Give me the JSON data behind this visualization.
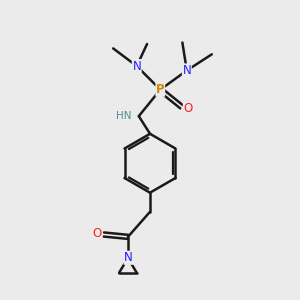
{
  "bg_color": "#ebebeb",
  "bond_color": "#1a1a1a",
  "N_color": "#2020ff",
  "NH_color": "#5a8a8a",
  "P_color": "#cc8800",
  "O_color": "#ff2020",
  "line_width": 1.8,
  "figsize": [
    3.0,
    3.0
  ],
  "dpi": 100,
  "xlim": [
    0,
    10
  ],
  "ylim": [
    0,
    10
  ]
}
